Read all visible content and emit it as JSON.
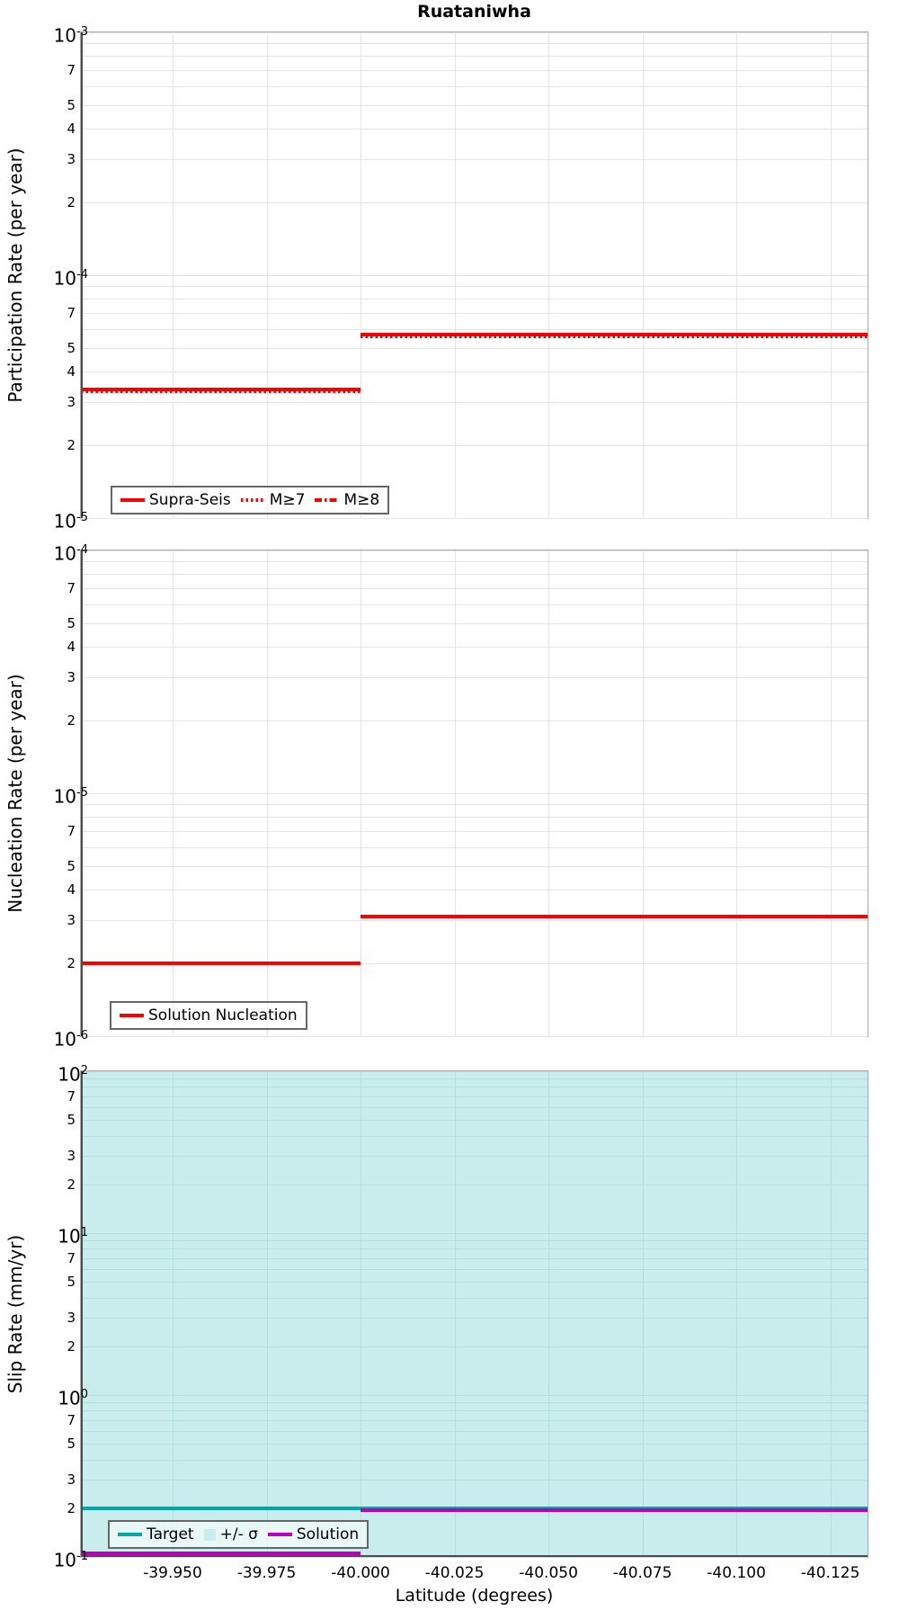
{
  "title": "Ruataniwha",
  "colors": {
    "line_red": "#FF0000",
    "target_teal": "#00A8A8",
    "solution_magenta": "#BB00BB",
    "sigma_band": "#C9ECEC",
    "grid": "#E4E4E4",
    "band_grid": "#B5DEDE",
    "panel_border": "#A9A9A9",
    "axis_spine": "#4D4D4D"
  },
  "x_axis": {
    "label": "Latitude (degrees)",
    "xlim": [
      -39.9256,
      -40.1349
    ],
    "ticks": [
      -39.95,
      -39.975,
      -40.0,
      -40.025,
      -40.05,
      -40.075,
      -40.1,
      -40.125
    ],
    "tick_labels": [
      "-39.950",
      "-39.975",
      "-40.000",
      "-40.025",
      "-40.050",
      "-40.075",
      "-40.100",
      "-40.125"
    ]
  },
  "chart_data": [
    {
      "type": "line",
      "ylabel": "Participation Rate (per year)",
      "ylim": [
        1e-05,
        0.001
      ],
      "y_scale": "log",
      "minor_tick_labels": [
        7,
        5,
        4,
        3,
        2
      ],
      "legend": [
        {
          "label": "Supra-Seis",
          "swatch": "line-solid",
          "color": "#FF0000"
        },
        {
          "label": "M≥7",
          "swatch": "line-dotted",
          "color": "#FF0000"
        },
        {
          "label": "M≥8",
          "swatch": "line-dashdot",
          "color": "#FF0000"
        }
      ],
      "series": [
        {
          "name": "Supra-Seis",
          "color": "#FF0000",
          "style": "solid",
          "width": 4,
          "segments": [
            {
              "x": [
                -39.9256,
                -40.0
              ],
              "y": 3.4e-05
            },
            {
              "x": [
                -40.0,
                -40.1349
              ],
              "y": 5.7e-05
            }
          ]
        },
        {
          "name": "M≥7",
          "color": "#E60000",
          "style": "dotted",
          "width": 4,
          "dy": 2,
          "segments": [
            {
              "x": [
                -39.9256,
                -40.0
              ],
              "y": 3.4e-05
            },
            {
              "x": [
                -40.0,
                -40.1349
              ],
              "y": 5.7e-05
            }
          ]
        },
        {
          "name": "M≥8",
          "color": "#FF0000",
          "style": "dashdot",
          "width": 4,
          "segments": []
        }
      ]
    },
    {
      "type": "line",
      "ylabel": "Nucleation Rate (per year)",
      "ylim": [
        1e-06,
        0.0001
      ],
      "y_scale": "log",
      "minor_tick_labels": [
        7,
        5,
        4,
        3,
        2
      ],
      "legend": [
        {
          "label": "Solution Nucleation",
          "swatch": "line-solid",
          "color": "#FF0000"
        }
      ],
      "series": [
        {
          "name": "Solution Nucleation",
          "color": "#FF0000",
          "style": "solid",
          "width": 4,
          "segments": [
            {
              "x": [
                -39.9256,
                -40.0
              ],
              "y": 2e-06
            },
            {
              "x": [
                -40.0,
                -40.1349
              ],
              "y": 3.1e-06
            }
          ]
        }
      ]
    },
    {
      "type": "line",
      "ylabel": "Slip Rate (mm/yr)",
      "ylim": [
        0.1,
        100
      ],
      "y_scale": "log",
      "minor_tick_labels": [
        7,
        5,
        3,
        2
      ],
      "band": {
        "name": "+/- σ",
        "ylo": 0.1,
        "yhi": 100,
        "color": "#C9ECEC"
      },
      "legend": [
        {
          "label": "Target",
          "swatch": "line-solid",
          "color": "#00A8A8"
        },
        {
          "label": "+/- σ",
          "swatch": "square",
          "color": "#C9ECEC"
        },
        {
          "label": "Solution",
          "swatch": "line-solid",
          "color": "#BB00BB"
        }
      ],
      "series": [
        {
          "name": "Target",
          "color": "#00A8A8",
          "style": "solid",
          "width": 4,
          "segments": [
            {
              "x": [
                -39.9256,
                -40.1349
              ],
              "y": 0.2
            }
          ]
        },
        {
          "name": "Solution",
          "color": "#BB00BB",
          "style": "solid",
          "width": 4,
          "segments": [
            {
              "x": [
                -39.9256,
                -40.0
              ],
              "y": 0.105
            },
            {
              "x": [
                -40.0,
                -40.1349
              ],
              "y": 0.195
            }
          ]
        }
      ]
    }
  ]
}
